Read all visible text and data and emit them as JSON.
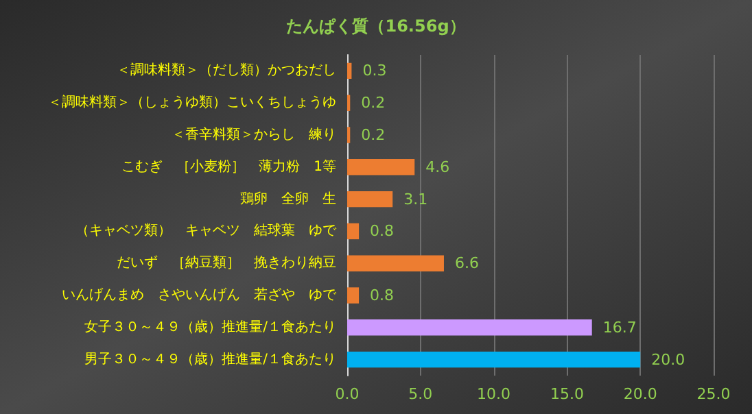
{
  "chart_data": {
    "type": "bar",
    "orientation": "horizontal",
    "title": "たんぱく質（16.56g）",
    "categories": [
      "＜調味料類＞（だし類）かつおだし",
      "＜調味料類＞（しょうゆ類）こいくちしょうゆ",
      "＜香辛料類＞からし　練り",
      "こむぎ　［小麦粉］　薄力粉　1等",
      "鶏卵　全卵　生",
      "（キャベツ類）　キャベツ　結球葉　ゆで",
      "だいず　［納豆類］　挽きわり納豆",
      "いんげんまめ　さやいんげん　若ざや　ゆで",
      "女子３０～４９（歳）推進量/１食あたり",
      "男子３０～４９（歳）推進量/１食あたり"
    ],
    "values": [
      0.3,
      0.2,
      0.2,
      4.6,
      3.1,
      0.8,
      6.6,
      0.8,
      16.7,
      20.0
    ],
    "value_labels": [
      "0.3",
      "0.2",
      "0.2",
      "4.6",
      "3.1",
      "0.8",
      "6.6",
      "0.8",
      "16.7",
      "20.0"
    ],
    "colors": [
      "#ed7d31",
      "#ed7d31",
      "#ed7d31",
      "#ed7d31",
      "#ed7d31",
      "#ed7d31",
      "#ed7d31",
      "#ed7d31",
      "#cc99ff",
      "#00b0f0"
    ],
    "xlim": [
      0,
      25
    ],
    "xticks": [
      {
        "value": 0,
        "label": "0.0"
      },
      {
        "value": 5,
        "label": "5.0"
      },
      {
        "value": 10,
        "label": "10.0"
      },
      {
        "value": 15,
        "label": "15.0"
      },
      {
        "value": 20,
        "label": "20.0"
      },
      {
        "value": 25,
        "label": "25.0"
      }
    ],
    "grid": "x"
  }
}
